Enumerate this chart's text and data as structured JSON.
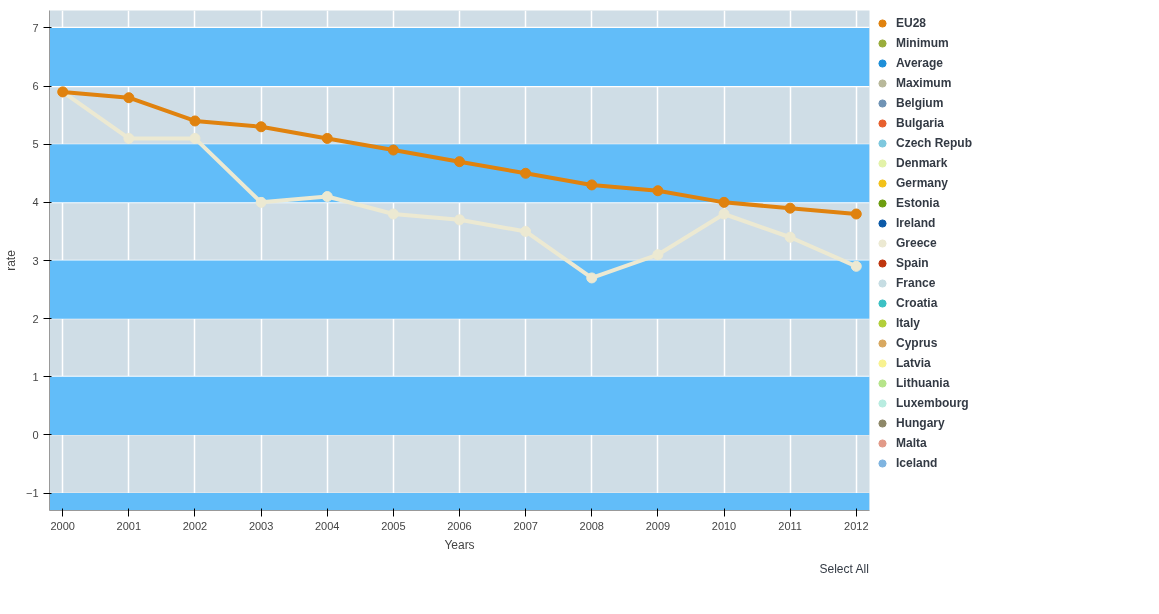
{
  "chart_data": {
    "type": "line",
    "xlabel": "Years",
    "ylabel": "rate",
    "x": [
      2000,
      2001,
      2002,
      2003,
      2004,
      2005,
      2006,
      2007,
      2008,
      2009,
      2010,
      2011,
      2012
    ],
    "xlim": [
      1999.8,
      2012.2
    ],
    "xticks": [
      2000,
      2001,
      2002,
      2003,
      2004,
      2005,
      2006,
      2007,
      2008,
      2009,
      2010,
      2011,
      2012
    ],
    "ylim": [
      -1.3,
      7.3
    ],
    "yticks": [
      -1,
      0,
      1,
      2,
      3,
      4,
      5,
      6,
      7
    ],
    "grid": true,
    "legend": "right",
    "marker": "circle",
    "line_style": "solid",
    "annotations": [
      "Select All"
    ],
    "bands": [
      {
        "axis": "y",
        "from": 6,
        "to": 7,
        "color": "#62bdf9"
      },
      {
        "axis": "y",
        "from": 4,
        "to": 5,
        "color": "#62bdf9"
      },
      {
        "axis": "y",
        "from": 2,
        "to": 3,
        "color": "#62bdf9"
      },
      {
        "axis": "y",
        "from": 0,
        "to": 1,
        "color": "#62bdf9"
      },
      {
        "axis": "y",
        "from": -1.3,
        "to": -1,
        "color": "#62bdf9"
      }
    ],
    "series": [
      {
        "name": "EU28",
        "color": "#e0820e",
        "values": [
          5.9,
          5.8,
          5.4,
          5.3,
          5.1,
          4.9,
          4.7,
          4.5,
          4.3,
          4.2,
          4.0,
          3.9,
          3.8
        ]
      },
      {
        "name": "Minimum",
        "color": "#9aad3c",
        "values": [
          null,
          null,
          null,
          null,
          null,
          null,
          null,
          null,
          null,
          null,
          null,
          null,
          null
        ]
      },
      {
        "name": "Average",
        "color": "#1e8fd8",
        "values": [
          null,
          null,
          null,
          null,
          null,
          null,
          null,
          null,
          null,
          null,
          null,
          null,
          null
        ]
      },
      {
        "name": "Maximum",
        "color": "#b8b89a",
        "values": [
          null,
          null,
          null,
          null,
          null,
          null,
          null,
          null,
          null,
          null,
          null,
          null,
          null
        ]
      },
      {
        "name": "Belgium",
        "color": "#6f93b5",
        "values": [
          null,
          null,
          null,
          null,
          null,
          null,
          null,
          null,
          null,
          null,
          null,
          null,
          null
        ]
      },
      {
        "name": "Bulgaria",
        "color": "#e8602e",
        "values": [
          null,
          null,
          null,
          null,
          null,
          null,
          null,
          null,
          null,
          null,
          null,
          null,
          null
        ]
      },
      {
        "name": "Czech Repub",
        "color": "#7ec8de",
        "values": [
          null,
          null,
          null,
          null,
          null,
          null,
          null,
          null,
          null,
          null,
          null,
          null,
          null
        ]
      },
      {
        "name": "Denmark",
        "color": "#e3f2a8",
        "values": [
          null,
          null,
          null,
          null,
          null,
          null,
          null,
          null,
          null,
          null,
          null,
          null,
          null
        ]
      },
      {
        "name": "Germany",
        "color": "#f2c21a",
        "values": [
          null,
          null,
          null,
          null,
          null,
          null,
          null,
          null,
          null,
          null,
          null,
          null,
          null
        ]
      },
      {
        "name": "Estonia",
        "color": "#6e9e10",
        "values": [
          null,
          null,
          null,
          null,
          null,
          null,
          null,
          null,
          null,
          null,
          null,
          null,
          null
        ]
      },
      {
        "name": "Ireland",
        "color": "#0d5aa8",
        "values": [
          null,
          null,
          null,
          null,
          null,
          null,
          null,
          null,
          null,
          null,
          null,
          null,
          null
        ]
      },
      {
        "name": "Greece",
        "color": "#ece9d2",
        "values": [
          5.9,
          5.1,
          5.1,
          4.0,
          4.1,
          3.8,
          3.7,
          3.5,
          2.7,
          3.1,
          3.8,
          3.4,
          2.9
        ]
      },
      {
        "name": "Spain",
        "color": "#c0360e",
        "values": [
          null,
          null,
          null,
          null,
          null,
          null,
          null,
          null,
          null,
          null,
          null,
          null,
          null
        ]
      },
      {
        "name": "France",
        "color": "#c6dde3",
        "values": [
          null,
          null,
          null,
          null,
          null,
          null,
          null,
          null,
          null,
          null,
          null,
          null,
          null
        ]
      },
      {
        "name": "Croatia",
        "color": "#3cc1c4",
        "values": [
          null,
          null,
          null,
          null,
          null,
          null,
          null,
          null,
          null,
          null,
          null,
          null,
          null
        ]
      },
      {
        "name": "Italy",
        "color": "#b2cf3a",
        "values": [
          null,
          null,
          null,
          null,
          null,
          null,
          null,
          null,
          null,
          null,
          null,
          null,
          null
        ]
      },
      {
        "name": "Cyprus",
        "color": "#d8a860",
        "values": [
          null,
          null,
          null,
          null,
          null,
          null,
          null,
          null,
          null,
          null,
          null,
          null,
          null
        ]
      },
      {
        "name": "Latvia",
        "color": "#f8f290",
        "values": [
          null,
          null,
          null,
          null,
          null,
          null,
          null,
          null,
          null,
          null,
          null,
          null,
          null
        ]
      },
      {
        "name": "Lithuania",
        "color": "#b6e48a",
        "values": [
          null,
          null,
          null,
          null,
          null,
          null,
          null,
          null,
          null,
          null,
          null,
          null,
          null
        ]
      },
      {
        "name": "Luxembourg",
        "color": "#b8ece0",
        "values": [
          null,
          null,
          null,
          null,
          null,
          null,
          null,
          null,
          null,
          null,
          null,
          null,
          null
        ]
      },
      {
        "name": "Hungary",
        "color": "#8e8868",
        "values": [
          null,
          null,
          null,
          null,
          null,
          null,
          null,
          null,
          null,
          null,
          null,
          null,
          null
        ]
      },
      {
        "name": "Malta",
        "color": "#e29a88",
        "values": [
          null,
          null,
          null,
          null,
          null,
          null,
          null,
          null,
          null,
          null,
          null,
          null,
          null
        ]
      },
      {
        "name": "Iceland",
        "color": "#7fb4e0",
        "values": [
          null,
          null,
          null,
          null,
          null,
          null,
          null,
          null,
          null,
          null,
          null,
          null,
          null
        ]
      }
    ]
  }
}
